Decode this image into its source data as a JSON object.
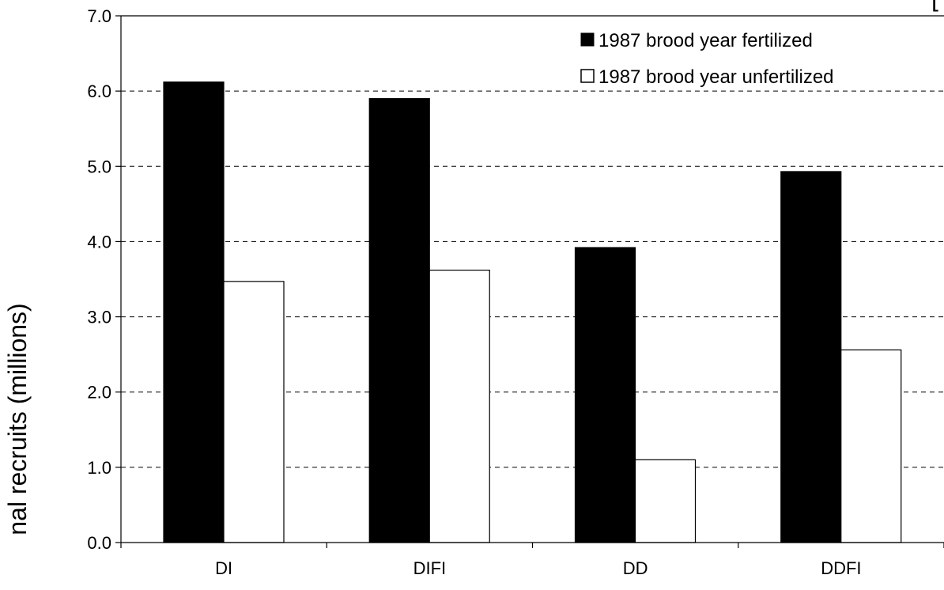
{
  "chart_data": {
    "type": "bar",
    "title": "",
    "xlabel": "",
    "ylabel": "nal recruits (millions)",
    "corner_mark": "[",
    "categories": [
      "DI",
      "DIFI",
      "DD",
      "DDFI"
    ],
    "series": [
      {
        "name": "1987 brood year fertilized",
        "values": [
          6.12,
          5.9,
          3.92,
          4.93
        ],
        "color": "#000000"
      },
      {
        "name": "1987 brood year unfertilized",
        "values": [
          3.47,
          3.62,
          1.1,
          2.56
        ],
        "color": "#ffffff"
      }
    ],
    "ylim": [
      0,
      7
    ],
    "yticks": [
      "0.0",
      "1.0",
      "2.0",
      "3.0",
      "4.0",
      "5.0",
      "6.0",
      "7.0"
    ],
    "grid": "horizontal dashed",
    "legend_position": "top-right"
  }
}
